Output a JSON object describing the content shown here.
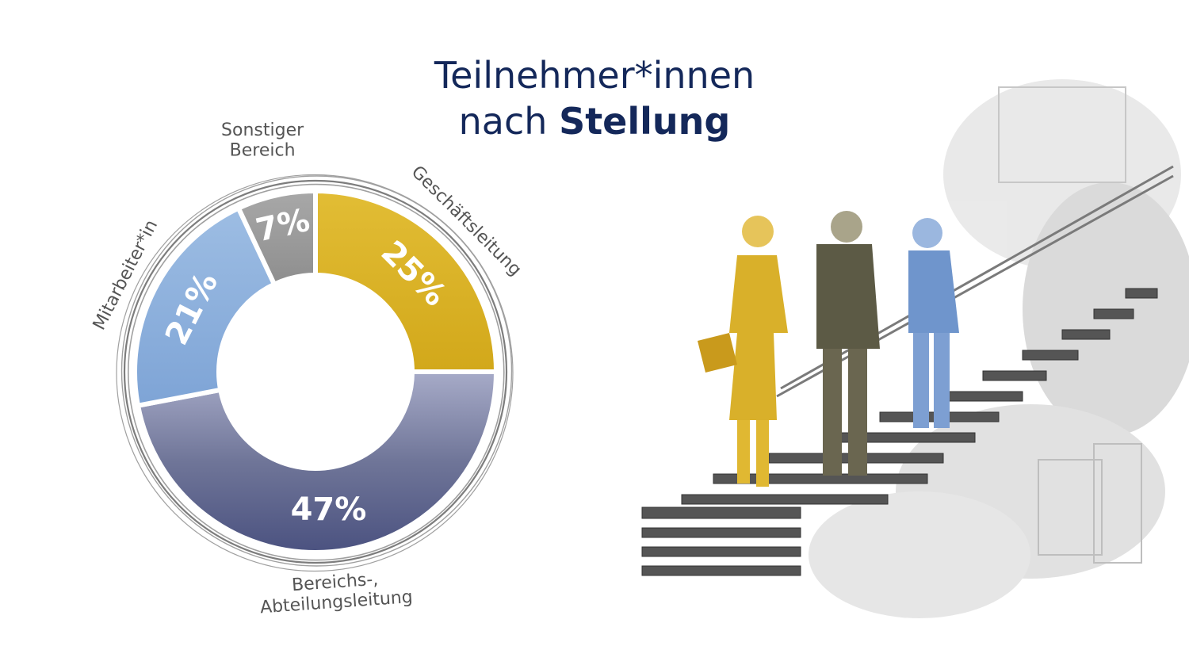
{
  "title": {
    "line1": "Teilnehmer*innen",
    "line2_prefix": "nach ",
    "line2_bold": "Stellung"
  },
  "chart_data": {
    "type": "pie",
    "donut": true,
    "title": "Teilnehmer*innen nach Stellung",
    "slices": [
      {
        "label": "Geschäftsleitung",
        "value": 25,
        "value_label": "25%",
        "color": "#dcb324"
      },
      {
        "label": "Bereichs-, Abteilungsleitung",
        "label_lines": [
          "Bereichs-,",
          "Abteilungsleitung"
        ],
        "value": 47,
        "value_label": "47%",
        "color": "#6f7598"
      },
      {
        "label": "Mitarbeiter*in",
        "value": 21,
        "value_label": "21%",
        "color": "#8db0dc"
      },
      {
        "label": "Sonstiger Bereich",
        "label_lines": [
          "Sonstiger",
          "Bereich"
        ],
        "value": 7,
        "value_label": "7%",
        "color": "#9a9a9a"
      }
    ]
  }
}
